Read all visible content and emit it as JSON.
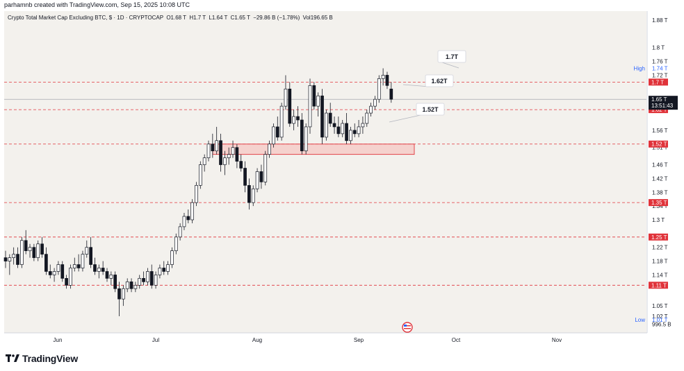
{
  "credit": "parhamnb created with TradingView.com, Sep 15, 2025 10:08 UTC",
  "header": {
    "title": "Crypto Total Market Cap Excluding BTC, $ · 1D · CRYPTOCAP",
    "open": "O1.68 T",
    "high": "H1.7 T",
    "low": "L1.64 T",
    "close": "C1.65 T",
    "change": "−29.86 B (−1.78%)",
    "volume": "Vol196.65 B"
  },
  "brand": "TradingView",
  "colors": {
    "background": "#f3f1ed",
    "bull": "#ffffff",
    "bear": "#131722",
    "level_line": "#e0333a",
    "zone_fill": "#f6c7c3",
    "zone_border": "#e0333a"
  },
  "price_axis": {
    "ticks": [
      "1.88 T",
      "1.8 T",
      "1.76 T",
      "1.72 T",
      "1.56 T",
      "1.51 T",
      "1.46 T",
      "1.42 T",
      "1.38 T",
      "1.34 T",
      "1.3 T",
      "1.22 T",
      "1.18 T",
      "1.14 T",
      "1.05 T",
      "1.02 T",
      "996.5 B"
    ],
    "high_label": "High",
    "high_value": "1.74 T",
    "low_label": "Low",
    "low_value": "1.01 T",
    "current_price": "1.65 T",
    "countdown": "13:51:43"
  },
  "time_axis": {
    "labels": [
      "Jun",
      "Jul",
      "Aug",
      "Sep",
      "Oct",
      "Nov"
    ]
  },
  "levels": [
    {
      "value": 1.7,
      "label": "1.7 T",
      "callout": "1.7T"
    },
    {
      "value": 1.62,
      "label": "1.62 T",
      "callout": "1.62T"
    },
    {
      "value": 1.52,
      "label": "1.52 T",
      "callout": "1.52T"
    },
    {
      "value": 1.35,
      "label": "1.35 T",
      "callout": ""
    },
    {
      "value": 1.25,
      "label": "1.25 T",
      "callout": ""
    },
    {
      "value": 1.11,
      "label": "1.11 T",
      "callout": ""
    }
  ],
  "chart_data": {
    "type": "candlestick",
    "title": "Crypto Total Market Cap Excluding BTC, $ · 1D · CRYPTOCAP",
    "units": "trillion USD",
    "ylim": [
      0.99,
      1.9
    ],
    "demand_zone": {
      "from": 1.49,
      "to": 1.52
    },
    "grid": false,
    "candles": [
      {
        "o": 1.19,
        "h": 1.21,
        "l": 1.16,
        "c": 1.18
      },
      {
        "o": 1.18,
        "h": 1.2,
        "l": 1.14,
        "c": 1.19
      },
      {
        "o": 1.19,
        "h": 1.22,
        "l": 1.17,
        "c": 1.2
      },
      {
        "o": 1.2,
        "h": 1.22,
        "l": 1.16,
        "c": 1.17
      },
      {
        "o": 1.17,
        "h": 1.25,
        "l": 1.16,
        "c": 1.24
      },
      {
        "o": 1.24,
        "h": 1.27,
        "l": 1.2,
        "c": 1.21
      },
      {
        "o": 1.21,
        "h": 1.23,
        "l": 1.19,
        "c": 1.22
      },
      {
        "o": 1.22,
        "h": 1.23,
        "l": 1.18,
        "c": 1.19
      },
      {
        "o": 1.19,
        "h": 1.24,
        "l": 1.18,
        "c": 1.23
      },
      {
        "o": 1.23,
        "h": 1.25,
        "l": 1.19,
        "c": 1.2
      },
      {
        "o": 1.2,
        "h": 1.22,
        "l": 1.14,
        "c": 1.15
      },
      {
        "o": 1.15,
        "h": 1.17,
        "l": 1.13,
        "c": 1.14
      },
      {
        "o": 1.14,
        "h": 1.16,
        "l": 1.12,
        "c": 1.15
      },
      {
        "o": 1.15,
        "h": 1.18,
        "l": 1.14,
        "c": 1.17
      },
      {
        "o": 1.17,
        "h": 1.18,
        "l": 1.12,
        "c": 1.13
      },
      {
        "o": 1.13,
        "h": 1.14,
        "l": 1.1,
        "c": 1.11
      },
      {
        "o": 1.11,
        "h": 1.17,
        "l": 1.1,
        "c": 1.16
      },
      {
        "o": 1.16,
        "h": 1.19,
        "l": 1.15,
        "c": 1.17
      },
      {
        "o": 1.17,
        "h": 1.2,
        "l": 1.15,
        "c": 1.16
      },
      {
        "o": 1.16,
        "h": 1.21,
        "l": 1.15,
        "c": 1.2
      },
      {
        "o": 1.2,
        "h": 1.24,
        "l": 1.19,
        "c": 1.22
      },
      {
        "o": 1.22,
        "h": 1.25,
        "l": 1.16,
        "c": 1.17
      },
      {
        "o": 1.17,
        "h": 1.19,
        "l": 1.14,
        "c": 1.15
      },
      {
        "o": 1.15,
        "h": 1.17,
        "l": 1.13,
        "c": 1.16
      },
      {
        "o": 1.16,
        "h": 1.18,
        "l": 1.14,
        "c": 1.15
      },
      {
        "o": 1.15,
        "h": 1.16,
        "l": 1.12,
        "c": 1.13
      },
      {
        "o": 1.13,
        "h": 1.15,
        "l": 1.11,
        "c": 1.14
      },
      {
        "o": 1.14,
        "h": 1.15,
        "l": 1.09,
        "c": 1.1
      },
      {
        "o": 1.1,
        "h": 1.12,
        "l": 1.02,
        "c": 1.07
      },
      {
        "o": 1.07,
        "h": 1.11,
        "l": 1.05,
        "c": 1.1
      },
      {
        "o": 1.1,
        "h": 1.13,
        "l": 1.09,
        "c": 1.12
      },
      {
        "o": 1.12,
        "h": 1.13,
        "l": 1.09,
        "c": 1.1
      },
      {
        "o": 1.1,
        "h": 1.12,
        "l": 1.09,
        "c": 1.11
      },
      {
        "o": 1.11,
        "h": 1.14,
        "l": 1.1,
        "c": 1.13
      },
      {
        "o": 1.13,
        "h": 1.15,
        "l": 1.11,
        "c": 1.12
      },
      {
        "o": 1.12,
        "h": 1.16,
        "l": 1.11,
        "c": 1.15
      },
      {
        "o": 1.15,
        "h": 1.17,
        "l": 1.1,
        "c": 1.11
      },
      {
        "o": 1.11,
        "h": 1.15,
        "l": 1.1,
        "c": 1.14
      },
      {
        "o": 1.14,
        "h": 1.17,
        "l": 1.13,
        "c": 1.16
      },
      {
        "o": 1.16,
        "h": 1.18,
        "l": 1.14,
        "c": 1.15
      },
      {
        "o": 1.15,
        "h": 1.18,
        "l": 1.14,
        "c": 1.17
      },
      {
        "o": 1.17,
        "h": 1.22,
        "l": 1.16,
        "c": 1.21
      },
      {
        "o": 1.21,
        "h": 1.26,
        "l": 1.2,
        "c": 1.25
      },
      {
        "o": 1.25,
        "h": 1.29,
        "l": 1.24,
        "c": 1.28
      },
      {
        "o": 1.28,
        "h": 1.32,
        "l": 1.27,
        "c": 1.31
      },
      {
        "o": 1.31,
        "h": 1.33,
        "l": 1.29,
        "c": 1.3
      },
      {
        "o": 1.3,
        "h": 1.36,
        "l": 1.29,
        "c": 1.35
      },
      {
        "o": 1.35,
        "h": 1.41,
        "l": 1.34,
        "c": 1.4
      },
      {
        "o": 1.4,
        "h": 1.47,
        "l": 1.39,
        "c": 1.46
      },
      {
        "o": 1.46,
        "h": 1.49,
        "l": 1.44,
        "c": 1.48
      },
      {
        "o": 1.48,
        "h": 1.53,
        "l": 1.47,
        "c": 1.52
      },
      {
        "o": 1.52,
        "h": 1.55,
        "l": 1.48,
        "c": 1.5
      },
      {
        "o": 1.5,
        "h": 1.57,
        "l": 1.49,
        "c": 1.53
      },
      {
        "o": 1.53,
        "h": 1.55,
        "l": 1.44,
        "c": 1.46
      },
      {
        "o": 1.46,
        "h": 1.5,
        "l": 1.43,
        "c": 1.48
      },
      {
        "o": 1.48,
        "h": 1.51,
        "l": 1.46,
        "c": 1.49
      },
      {
        "o": 1.49,
        "h": 1.53,
        "l": 1.48,
        "c": 1.51
      },
      {
        "o": 1.51,
        "h": 1.52,
        "l": 1.45,
        "c": 1.47
      },
      {
        "o": 1.47,
        "h": 1.49,
        "l": 1.44,
        "c": 1.45
      },
      {
        "o": 1.45,
        "h": 1.47,
        "l": 1.38,
        "c": 1.4
      },
      {
        "o": 1.4,
        "h": 1.42,
        "l": 1.33,
        "c": 1.35
      },
      {
        "o": 1.35,
        "h": 1.4,
        "l": 1.34,
        "c": 1.39
      },
      {
        "o": 1.39,
        "h": 1.45,
        "l": 1.38,
        "c": 1.44
      },
      {
        "o": 1.44,
        "h": 1.46,
        "l": 1.39,
        "c": 1.41
      },
      {
        "o": 1.41,
        "h": 1.5,
        "l": 1.4,
        "c": 1.49
      },
      {
        "o": 1.49,
        "h": 1.53,
        "l": 1.48,
        "c": 1.52
      },
      {
        "o": 1.52,
        "h": 1.58,
        "l": 1.51,
        "c": 1.57
      },
      {
        "o": 1.57,
        "h": 1.6,
        "l": 1.53,
        "c": 1.54
      },
      {
        "o": 1.54,
        "h": 1.64,
        "l": 1.53,
        "c": 1.63
      },
      {
        "o": 1.63,
        "h": 1.72,
        "l": 1.62,
        "c": 1.68
      },
      {
        "o": 1.68,
        "h": 1.7,
        "l": 1.57,
        "c": 1.58
      },
      {
        "o": 1.58,
        "h": 1.62,
        "l": 1.56,
        "c": 1.6
      },
      {
        "o": 1.6,
        "h": 1.63,
        "l": 1.57,
        "c": 1.59
      },
      {
        "o": 1.59,
        "h": 1.61,
        "l": 1.49,
        "c": 1.5
      },
      {
        "o": 1.5,
        "h": 1.58,
        "l": 1.49,
        "c": 1.57
      },
      {
        "o": 1.57,
        "h": 1.71,
        "l": 1.55,
        "c": 1.69
      },
      {
        "o": 1.69,
        "h": 1.7,
        "l": 1.62,
        "c": 1.63
      },
      {
        "o": 1.63,
        "h": 1.67,
        "l": 1.6,
        "c": 1.66
      },
      {
        "o": 1.66,
        "h": 1.68,
        "l": 1.52,
        "c": 1.54
      },
      {
        "o": 1.54,
        "h": 1.62,
        "l": 1.53,
        "c": 1.61
      },
      {
        "o": 1.61,
        "h": 1.64,
        "l": 1.57,
        "c": 1.58
      },
      {
        "o": 1.58,
        "h": 1.6,
        "l": 1.55,
        "c": 1.57
      },
      {
        "o": 1.57,
        "h": 1.6,
        "l": 1.54,
        "c": 1.55
      },
      {
        "o": 1.55,
        "h": 1.59,
        "l": 1.54,
        "c": 1.58
      },
      {
        "o": 1.58,
        "h": 1.61,
        "l": 1.52,
        "c": 1.53
      },
      {
        "o": 1.53,
        "h": 1.57,
        "l": 1.52,
        "c": 1.56
      },
      {
        "o": 1.56,
        "h": 1.58,
        "l": 1.54,
        "c": 1.55
      },
      {
        "o": 1.55,
        "h": 1.59,
        "l": 1.54,
        "c": 1.57
      },
      {
        "o": 1.57,
        "h": 1.6,
        "l": 1.55,
        "c": 1.58
      },
      {
        "o": 1.58,
        "h": 1.62,
        "l": 1.57,
        "c": 1.61
      },
      {
        "o": 1.61,
        "h": 1.64,
        "l": 1.6,
        "c": 1.63
      },
      {
        "o": 1.63,
        "h": 1.66,
        "l": 1.62,
        "c": 1.65
      },
      {
        "o": 1.65,
        "h": 1.72,
        "l": 1.64,
        "c": 1.71
      },
      {
        "o": 1.71,
        "h": 1.74,
        "l": 1.69,
        "c": 1.72
      },
      {
        "o": 1.72,
        "h": 1.73,
        "l": 1.68,
        "c": 1.69
      },
      {
        "o": 1.68,
        "h": 1.7,
        "l": 1.64,
        "c": 1.65
      }
    ]
  }
}
